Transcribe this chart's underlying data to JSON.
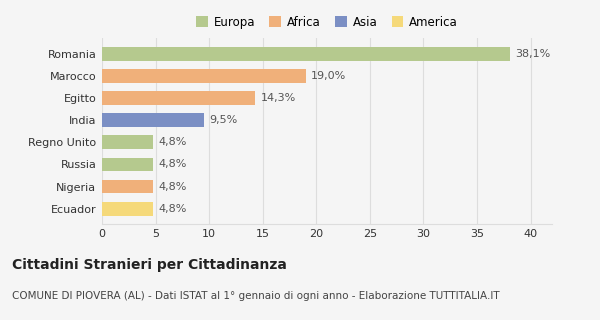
{
  "categories": [
    "Romania",
    "Marocco",
    "Egitto",
    "India",
    "Regno Unito",
    "Russia",
    "Nigeria",
    "Ecuador"
  ],
  "values": [
    38.1,
    19.0,
    14.3,
    9.5,
    4.8,
    4.8,
    4.8,
    4.8
  ],
  "labels": [
    "38,1%",
    "19,0%",
    "14,3%",
    "9,5%",
    "4,8%",
    "4,8%",
    "4,8%",
    "4,8%"
  ],
  "colors": [
    "#b5c98e",
    "#f0b07a",
    "#f0b07a",
    "#7b8fc4",
    "#b5c98e",
    "#b5c98e",
    "#f0b07a",
    "#f5d97a"
  ],
  "legend_labels": [
    "Europa",
    "Africa",
    "Asia",
    "America"
  ],
  "legend_colors": [
    "#b5c98e",
    "#f0b07a",
    "#7b8fc4",
    "#f5d97a"
  ],
  "xlim": [
    0,
    42
  ],
  "xticks": [
    0,
    5,
    10,
    15,
    20,
    25,
    30,
    35,
    40
  ],
  "title": "Cittadini Stranieri per Cittadinanza",
  "subtitle": "COMUNE DI PIOVERA (AL) - Dati ISTAT al 1° gennaio di ogni anno - Elaborazione TUTTITALIA.IT",
  "bg_color": "#f5f5f5",
  "bar_height": 0.62,
  "grid_color": "#dddddd",
  "title_fontsize": 10,
  "subtitle_fontsize": 7.5,
  "label_fontsize": 8,
  "tick_fontsize": 8,
  "legend_fontsize": 8.5
}
